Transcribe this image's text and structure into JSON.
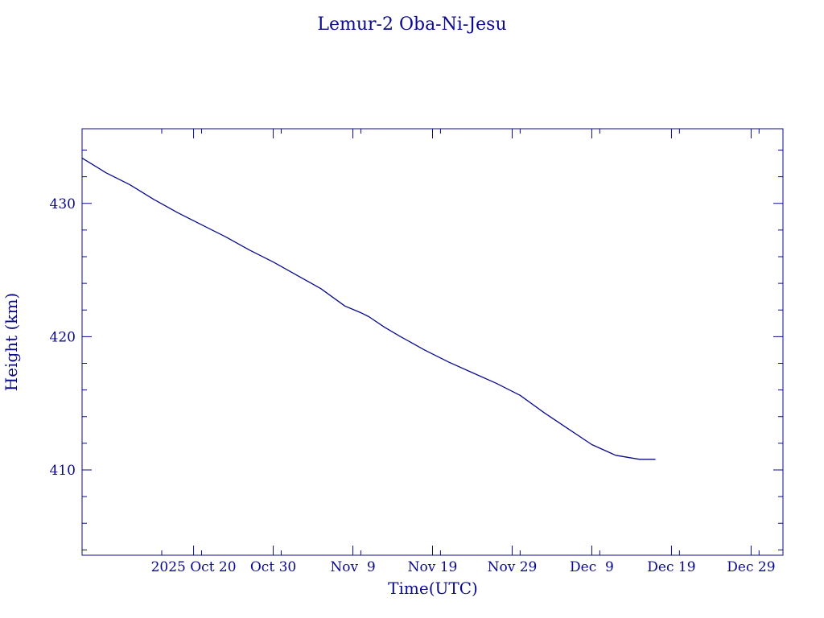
{
  "chart_data": {
    "type": "line",
    "title": "Lemur-2 Oba-Ni-Jesu",
    "xlabel": "Time(UTC)",
    "ylabel": "Height (km)",
    "color": "#0a0a8c",
    "grid": false,
    "ylim": [
      403.6,
      435.6
    ],
    "xlim": [
      "2025-10-06",
      "2026-01-02"
    ],
    "yticks": [
      410,
      420,
      430
    ],
    "yticks_minor_step": 2,
    "xticks": [
      {
        "date": "2025-10-20",
        "label": "2025 Oct 20"
      },
      {
        "date": "2025-10-30",
        "label": "Oct 30"
      },
      {
        "date": "2025-11-09",
        "label": "Nov  9"
      },
      {
        "date": "2025-11-19",
        "label": "Nov 19"
      },
      {
        "date": "2025-11-29",
        "label": "Nov 29"
      },
      {
        "date": "2025-12-09",
        "label": "Dec  9"
      },
      {
        "date": "2025-12-19",
        "label": "Dec 19"
      },
      {
        "date": "2025-12-29",
        "label": "Dec 29"
      }
    ],
    "xticks_minor_days": [
      10,
      15,
      25,
      35,
      45,
      55,
      65,
      75,
      85
    ],
    "series": [
      {
        "x": [
          "2025-10-06",
          "2025-10-09",
          "2025-10-12",
          "2025-10-15",
          "2025-10-18",
          "2025-10-21",
          "2025-10-24",
          "2025-10-27",
          "2025-10-30",
          "2025-11-02",
          "2025-11-05",
          "2025-11-08",
          "2025-11-10",
          "2025-11-11",
          "2025-11-13",
          "2025-11-15",
          "2025-11-18",
          "2025-11-21",
          "2025-11-24",
          "2025-11-27",
          "2025-11-30",
          "2025-12-03",
          "2025-12-06",
          "2025-12-09",
          "2025-12-12",
          "2025-12-15",
          "2025-12-17"
        ],
        "y": [
          433.4,
          432.3,
          431.4,
          430.3,
          429.3,
          428.4,
          427.5,
          426.5,
          425.6,
          424.6,
          423.6,
          422.3,
          421.8,
          421.5,
          420.7,
          420.0,
          419.0,
          418.1,
          417.3,
          416.5,
          415.6,
          414.3,
          413.1,
          411.9,
          411.1,
          410.8,
          410.8
        ]
      }
    ]
  }
}
